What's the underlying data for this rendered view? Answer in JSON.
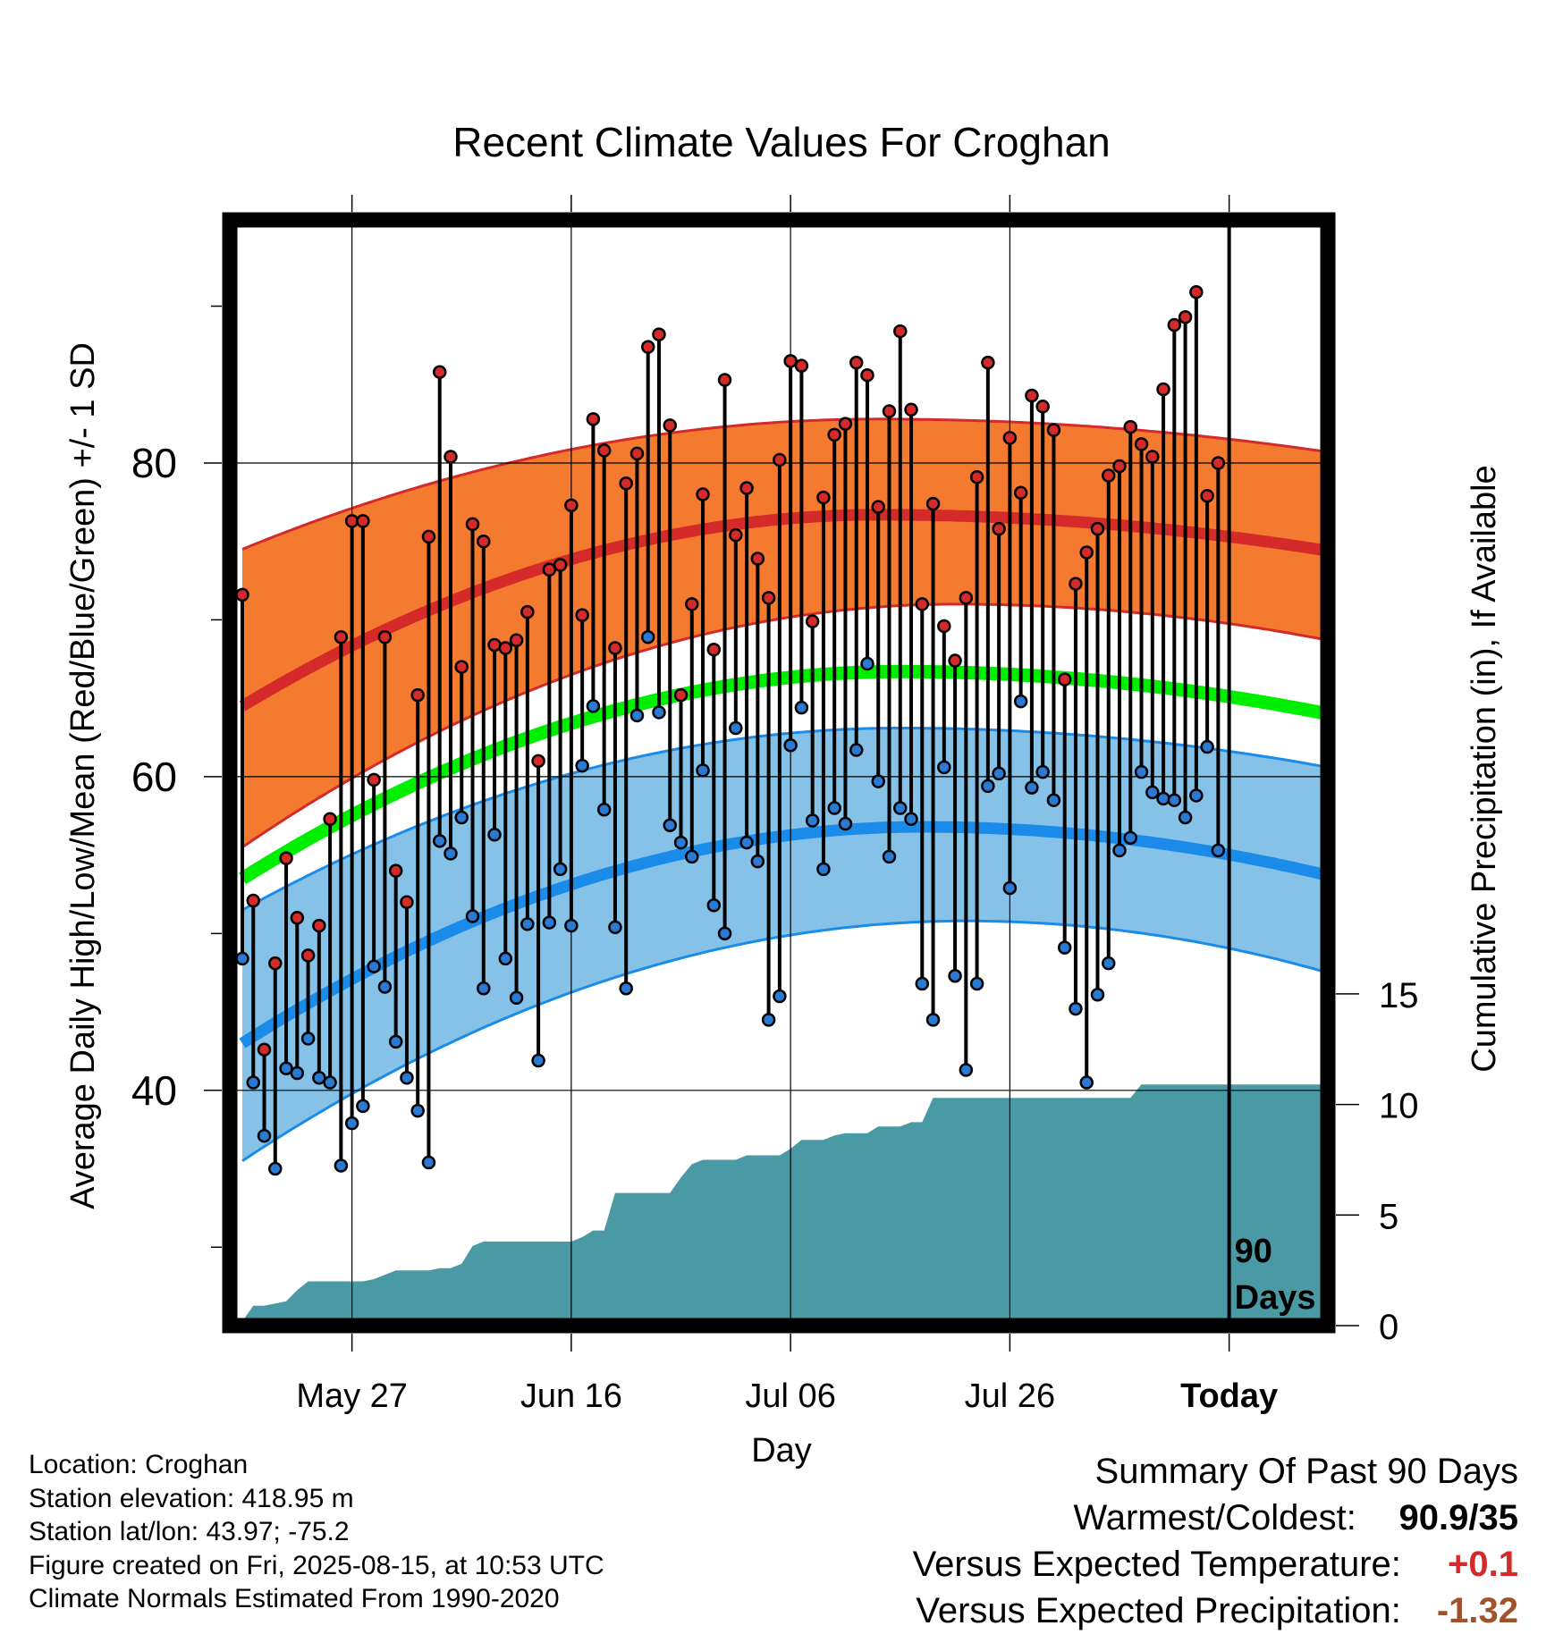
{
  "title": "Recent Climate Values For Croghan",
  "chart_data": {
    "type": "line",
    "title": "Recent Climate Values For Croghan",
    "xlabel": "Day",
    "ylabel_left": "Average Daily High/Low/Mean (Red/Blue/Green) +/- 1 SD",
    "ylabel_right": "Cumulative Precipitation (in), If Available",
    "x_ticks": [
      {
        "day": 10,
        "label": "May 27"
      },
      {
        "day": 30,
        "label": "Jun 16"
      },
      {
        "day": 50,
        "label": "Jul 06"
      },
      {
        "day": 70,
        "label": "Jul 26"
      },
      {
        "day": 90,
        "label": "Today"
      }
    ],
    "x_range": [
      0,
      99
    ],
    "y_left_ticks": [
      40,
      60,
      80
    ],
    "y_left_range": [
      25,
      95.5
    ],
    "y_right_ticks": [
      0,
      5,
      10,
      15
    ],
    "y_right_range": [
      0,
      50
    ],
    "today_marker": "90\nDays",
    "normals": {
      "high_mean": {
        "start": 64.5,
        "peak": 76.7,
        "peak_day": 58,
        "end": 74.4
      },
      "high_upper": {
        "start": 74.5,
        "peak": 82.8,
        "peak_day": 58,
        "end": 80.7
      },
      "high_lower": {
        "start": 55.5,
        "peak": 71.0,
        "peak_day": 65,
        "end": 68.7
      },
      "mean": {
        "start": 53.5,
        "peak": 66.7,
        "peak_day": 60,
        "end": 64.0
      },
      "low_mean": {
        "start": 43.0,
        "peak": 56.8,
        "peak_day": 62,
        "end": 53.7
      },
      "low_upper": {
        "start": 51.5,
        "peak": 63.1,
        "peak_day": 60,
        "end": 60.6
      },
      "low_lower": {
        "start": 35.5,
        "peak": 50.8,
        "peak_day": 66,
        "end": 47.5
      }
    },
    "series": [
      {
        "name": "High",
        "color": "#d42a2a",
        "values": [
          71.6,
          52.1,
          42.6,
          48.1,
          54.8,
          51.0,
          48.6,
          50.5,
          57.3,
          68.9,
          76.3,
          76.3,
          59.8,
          68.9,
          54.0,
          52.0,
          65.2,
          75.3,
          85.8,
          80.4,
          67.0,
          76.1,
          75.0,
          68.4,
          68.2,
          68.7,
          70.5,
          61.0,
          73.2,
          73.5,
          77.3,
          70.3,
          82.8,
          80.8,
          68.2,
          78.7,
          80.6,
          87.4,
          88.2,
          82.4,
          65.2,
          71.0,
          78.0,
          68.1,
          85.3,
          75.4,
          78.4,
          73.9,
          71.4,
          80.2,
          86.5,
          86.2,
          69.9,
          77.8,
          81.8,
          82.5,
          86.4,
          85.6,
          77.2,
          83.3,
          88.4,
          83.4,
          71.0,
          77.4,
          69.6,
          67.4,
          71.4,
          79.1,
          86.4,
          75.8,
          81.6,
          78.1,
          84.3,
          83.6,
          82.1,
          66.2,
          72.3,
          74.3,
          75.8,
          79.2,
          79.8,
          82.3,
          81.2,
          80.4,
          84.7,
          88.8,
          89.3,
          90.9,
          77.9,
          80.0
        ]
      },
      {
        "name": "Low",
        "color": "#2a7ad4",
        "values": [
          48.4,
          40.5,
          37.1,
          35.0,
          41.4,
          41.1,
          43.3,
          40.8,
          40.5,
          35.2,
          37.9,
          39.0,
          47.9,
          46.6,
          43.1,
          40.8,
          38.7,
          35.4,
          55.9,
          55.1,
          57.4,
          51.1,
          46.5,
          56.3,
          48.4,
          45.9,
          50.6,
          41.9,
          50.7,
          54.1,
          50.5,
          60.7,
          64.5,
          57.9,
          50.4,
          46.5,
          63.9,
          68.9,
          64.1,
          56.9,
          55.8,
          54.9,
          60.4,
          51.8,
          50.0,
          63.1,
          55.8,
          54.6,
          44.5,
          46.0,
          62.0,
          64.4,
          57.2,
          54.1,
          58.0,
          57.0,
          61.7,
          67.2,
          59.7,
          54.9,
          58.0,
          57.3,
          46.8,
          44.5,
          60.6,
          47.3,
          41.3,
          46.8,
          59.4,
          60.2,
          52.9,
          64.8,
          59.3,
          60.3,
          58.5,
          49.1,
          45.2,
          40.5,
          46.1,
          48.1,
          55.3,
          56.1,
          60.3,
          59.0,
          58.6,
          58.5,
          57.4,
          58.8,
          61.9,
          55.3
        ]
      },
      {
        "name": "Precipitation",
        "color": "#4a9aa5",
        "cumulative": [
          0.2,
          0.9,
          0.9,
          1.0,
          1.1,
          1.6,
          2.0,
          2.0,
          2.0,
          2.0,
          2.0,
          2.0,
          2.1,
          2.3,
          2.5,
          2.5,
          2.5,
          2.5,
          2.6,
          2.6,
          2.8,
          3.6,
          3.8,
          3.8,
          3.8,
          3.8,
          3.8,
          3.8,
          3.8,
          3.8,
          3.8,
          4.0,
          4.3,
          4.3,
          6.0,
          6.0,
          6.0,
          6.0,
          6.0,
          6.0,
          6.7,
          7.3,
          7.5,
          7.5,
          7.5,
          7.5,
          7.7,
          7.7,
          7.7,
          7.7,
          8.0,
          8.4,
          8.4,
          8.4,
          8.6,
          8.7,
          8.7,
          8.7,
          9.0,
          9.0,
          9.0,
          9.2,
          9.2,
          10.3,
          10.3,
          10.3,
          10.3,
          10.3,
          10.3,
          10.3,
          10.3,
          10.3,
          10.3,
          10.3,
          10.3,
          10.3,
          10.3,
          10.3,
          10.3,
          10.3,
          10.3,
          10.3,
          10.9,
          10.9,
          10.9,
          10.9,
          10.9,
          10.9,
          10.9,
          10.9,
          10.9,
          10.9,
          10.9,
          10.9,
          10.9,
          10.9,
          10.9,
          10.9,
          10.9,
          10.9
        ]
      }
    ],
    "colors": {
      "high_band": "#f47a30",
      "high_line": "#d42a2a",
      "mean_line": "#00ee00",
      "low_band": "#86c2e8",
      "low_line": "#1a8be8",
      "precip_fill": "#4a9aa5"
    }
  },
  "info": {
    "location": "Location: Croghan",
    "elevation": "Station elevation: 418.95 m",
    "latlon": "Station lat/lon: 43.97; -75.2",
    "created": "Figure created on Fri, 2025-08-15, at 10:53 UTC",
    "normals": "Climate Normals Estimated From 1990-2020"
  },
  "summary": {
    "title": "Summary Of Past 90 Days",
    "warmest_label": "Warmest/Coldest:",
    "warmest_value": "90.9/35",
    "temp_label": "Versus Expected Temperature:",
    "temp_value": "+0.1",
    "temp_color": "#d42a2a",
    "precip_label": "Versus Expected Precipitation:",
    "precip_value": "-1.32",
    "precip_color": "#a0522d"
  }
}
